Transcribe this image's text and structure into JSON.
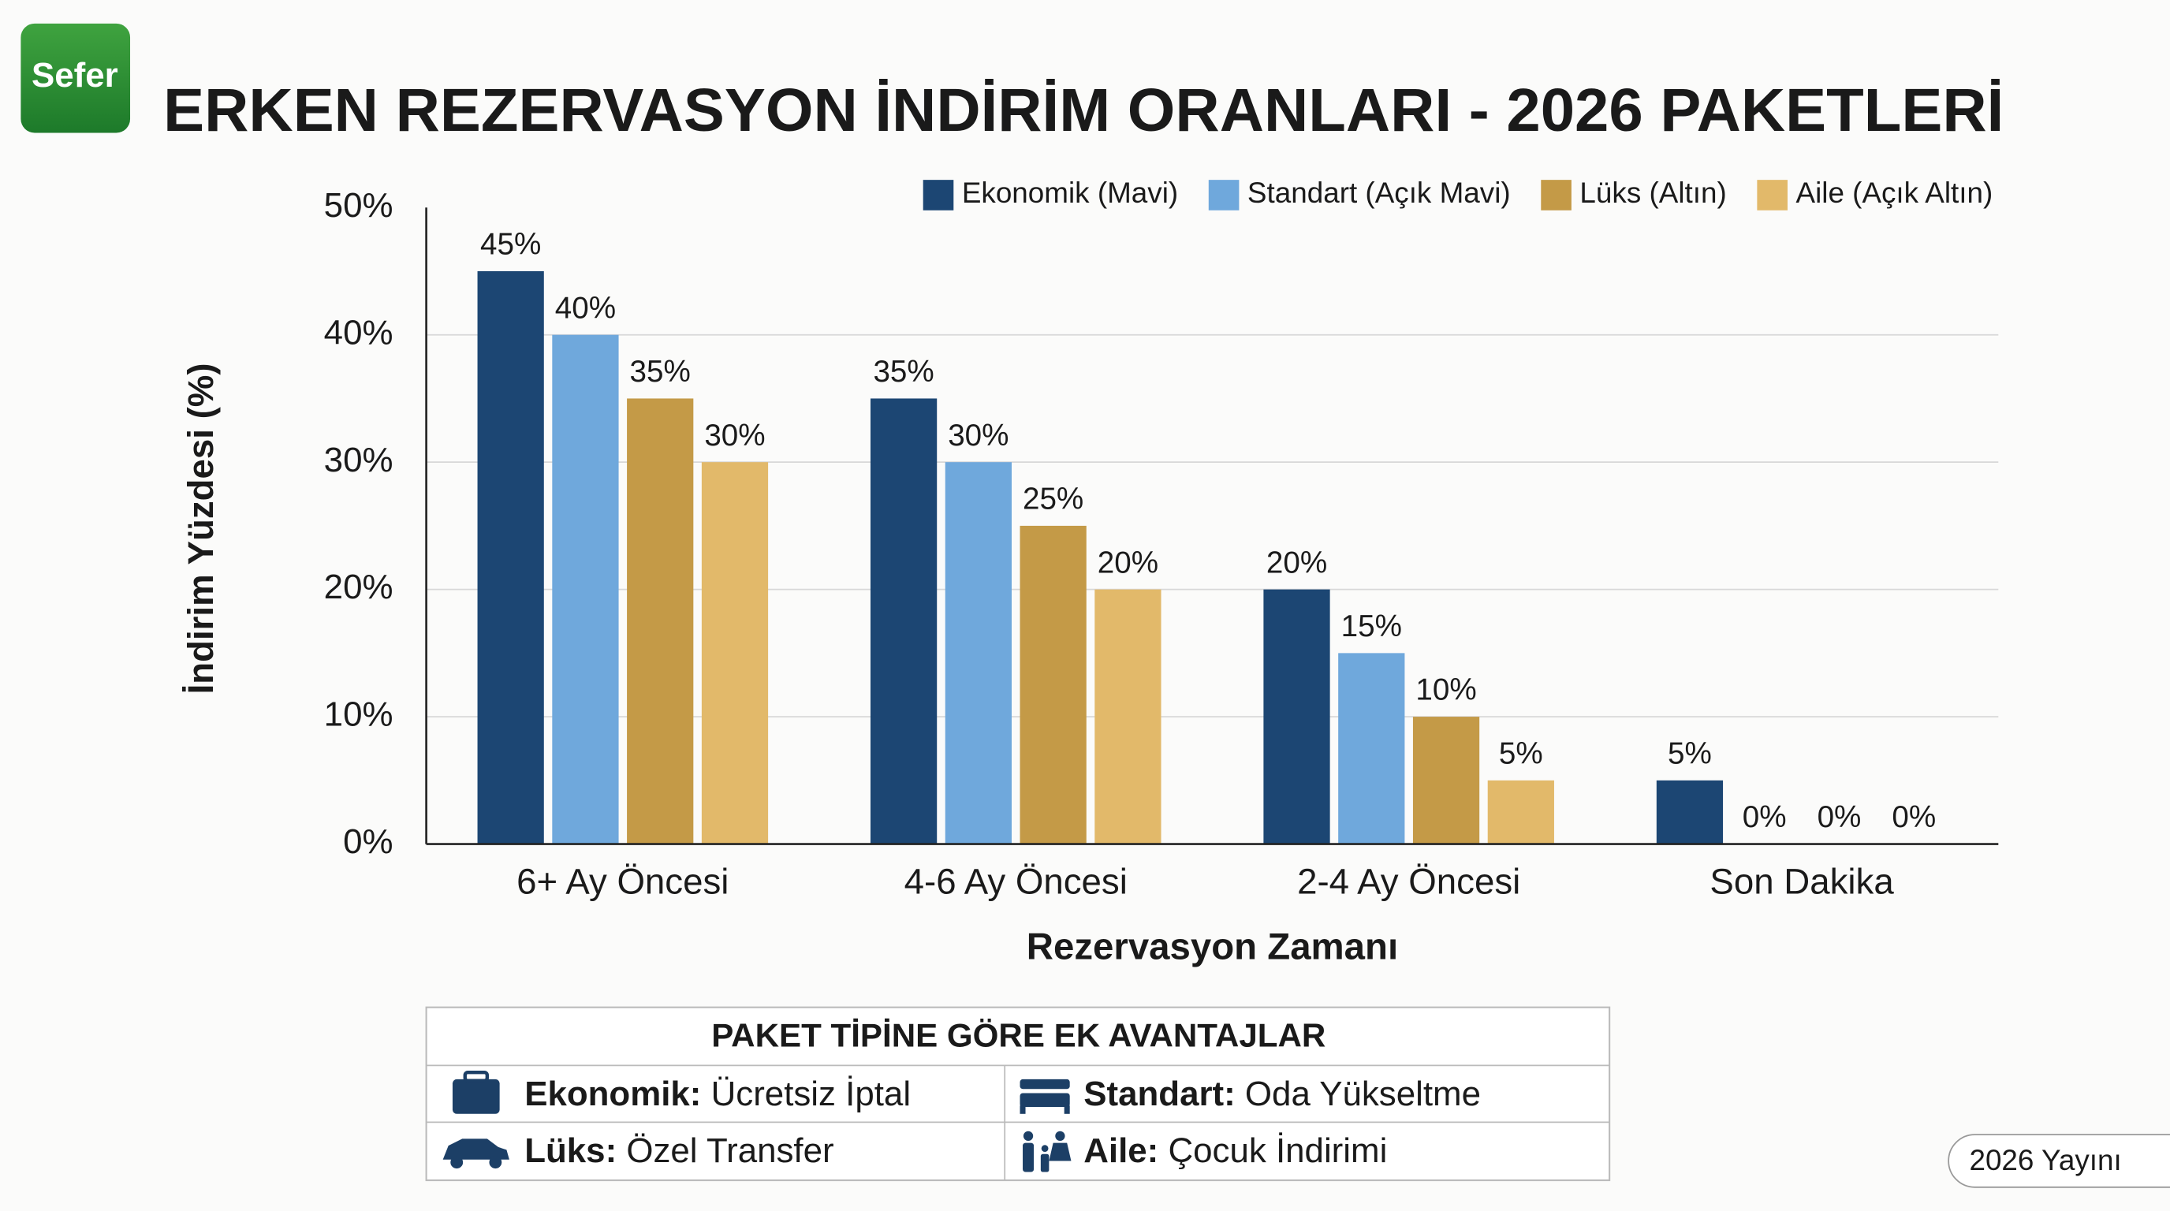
{
  "logo": "Sefer",
  "edition": "2026 Yayını",
  "chart_data": {
    "type": "bar",
    "title": "ERKEN REZERVASYON İNDİRİM ORANLARI - 2026 PAKETLERİ",
    "ylabel": "İndirim Yüzdesi (%)",
    "xlabel": "Rezervasyon Zamanı",
    "categories": [
      "6+ Ay Öncesi",
      "4-6 Ay Öncesi",
      "2-4 Ay Öncesi",
      "Son Dakika"
    ],
    "series": [
      {
        "name": "Ekonomik (Mavi)",
        "color": "#1c4673",
        "values": [
          45,
          35,
          20,
          5
        ],
        "value_labels": [
          "45%",
          "35%",
          "20%",
          "5%"
        ]
      },
      {
        "name": "Standart (Açık Mavi)",
        "color": "#6fa8dc",
        "values": [
          40,
          30,
          15,
          0
        ],
        "value_labels": [
          "40%",
          "30%",
          "15%",
          "0%"
        ]
      },
      {
        "name": "Lüks (Altın)",
        "color": "#c49a47",
        "values": [
          35,
          25,
          10,
          0
        ],
        "value_labels": [
          "35%",
          "25%",
          "10%",
          "0%"
        ]
      },
      {
        "name": "Aile (Açık Altın)",
        "color": "#e2b96a",
        "values": [
          30,
          20,
          5,
          0
        ],
        "value_labels": [
          "30%",
          "20%",
          "5%",
          "0%"
        ]
      }
    ],
    "ylim": [
      0,
      50
    ],
    "yticks": [
      {
        "value": 0,
        "label": "0%"
      },
      {
        "value": 10,
        "label": "10%"
      },
      {
        "value": 20,
        "label": "20%"
      },
      {
        "value": 30,
        "label": "30%"
      },
      {
        "value": 40,
        "label": "40%"
      },
      {
        "value": 50,
        "label": "50%"
      }
    ],
    "grid": true,
    "legend": "top-right"
  },
  "benefits": {
    "title": "PAKET TİPİNE GÖRE EK AVANTAJLAR",
    "items": [
      {
        "label": "Ekonomik:",
        "text": "Ücretsiz İptal"
      },
      {
        "label": "Standart:",
        "text": "Oda Yükseltme"
      },
      {
        "label": "Lüks:",
        "text": "Özel Transfer"
      },
      {
        "label": "Aile:",
        "text": "Çocuk İndirimi"
      }
    ]
  }
}
